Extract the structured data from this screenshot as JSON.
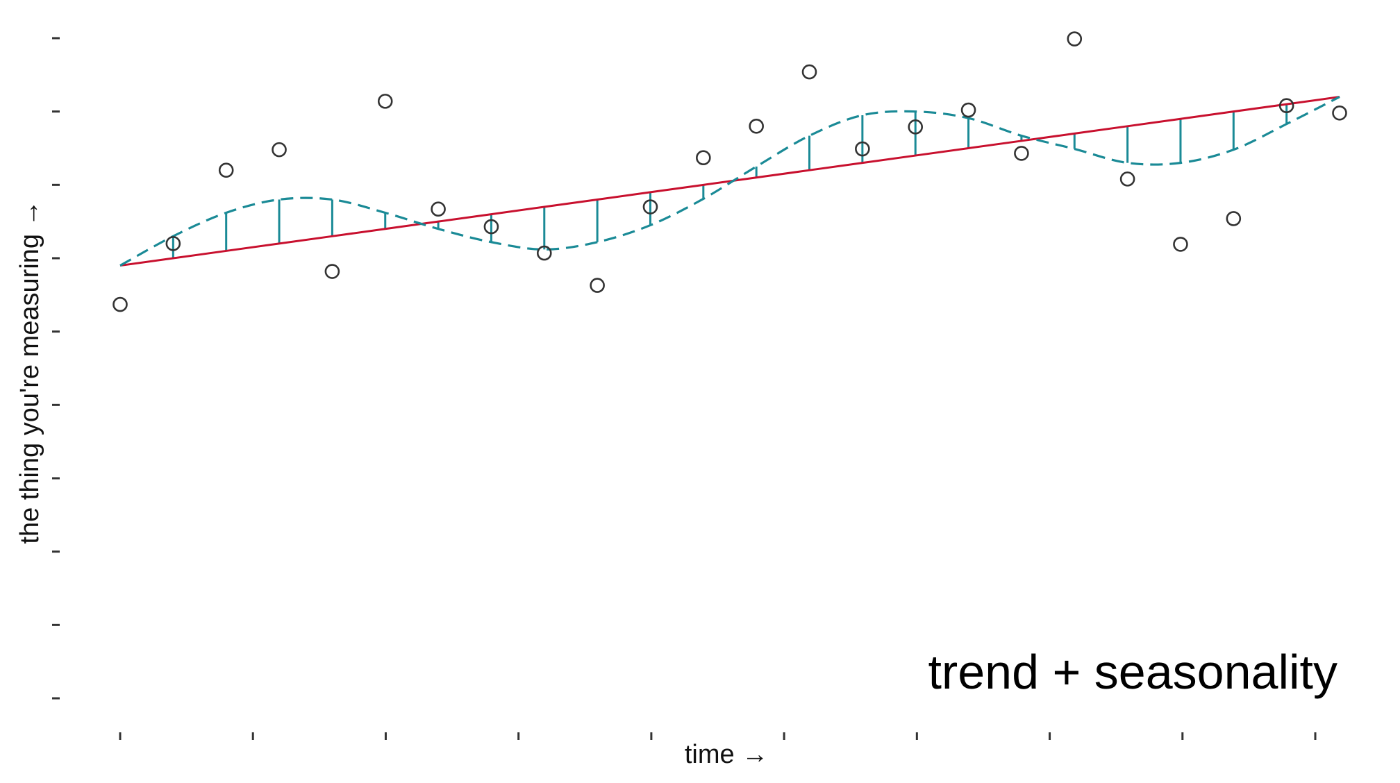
{
  "chart_data": {
    "type": "scatter",
    "title": "",
    "xlabel": "time →",
    "ylabel": "the thing you're measuring →",
    "annotation": "trend + seasonality",
    "x_tick_count": 10,
    "y_tick_count": 10,
    "xlim": [
      0,
      23
    ],
    "ylim": [
      0,
      9
    ],
    "grid": false,
    "legend": "none",
    "colors": {
      "trend": "#C8102E",
      "seasonal": "#1A8A96",
      "points": "#333333",
      "ticks": "#333333"
    },
    "series": [
      {
        "kind": "observed",
        "x": [
          0,
          1,
          2,
          3,
          4,
          5,
          6,
          7,
          8,
          9,
          10,
          11,
          12,
          13,
          14,
          15,
          16,
          17,
          18,
          19,
          20,
          21,
          22,
          23
        ],
        "y": [
          5.37,
          6.2,
          7.2,
          7.48,
          5.82,
          8.14,
          6.67,
          6.43,
          6.07,
          5.63,
          6.7,
          7.37,
          7.8,
          8.54,
          7.49,
          7.79,
          8.02,
          7.43,
          8.99,
          7.08,
          6.19,
          6.54,
          8.08,
          7.98
        ]
      },
      {
        "kind": "trend",
        "x": [
          0,
          1,
          2,
          3,
          4,
          5,
          6,
          7,
          8,
          9,
          10,
          11,
          12,
          13,
          14,
          15,
          16,
          17,
          18,
          19,
          20,
          21,
          22,
          23
        ],
        "y": [
          5.9,
          6.0,
          6.1,
          6.2,
          6.3,
          6.4,
          6.5,
          6.6,
          6.7,
          6.8,
          6.9,
          7.0,
          7.1,
          7.2,
          7.3,
          7.4,
          7.5,
          7.6,
          7.7,
          7.8,
          7.9,
          8.0,
          8.1,
          8.2
        ]
      },
      {
        "kind": "trend+seasonality",
        "x": [
          0,
          1,
          2,
          3,
          4,
          5,
          6,
          7,
          8,
          9,
          10,
          11,
          12,
          13,
          14,
          15,
          16,
          17,
          18,
          19,
          20,
          21,
          22,
          23
        ],
        "y": [
          5.9,
          6.3,
          6.62,
          6.8,
          6.8,
          6.62,
          6.4,
          6.22,
          6.12,
          6.22,
          6.45,
          6.81,
          7.25,
          7.67,
          7.95,
          8.0,
          7.91,
          7.67,
          7.49,
          7.3,
          7.3,
          7.48,
          7.83,
          8.2
        ]
      }
    ]
  }
}
